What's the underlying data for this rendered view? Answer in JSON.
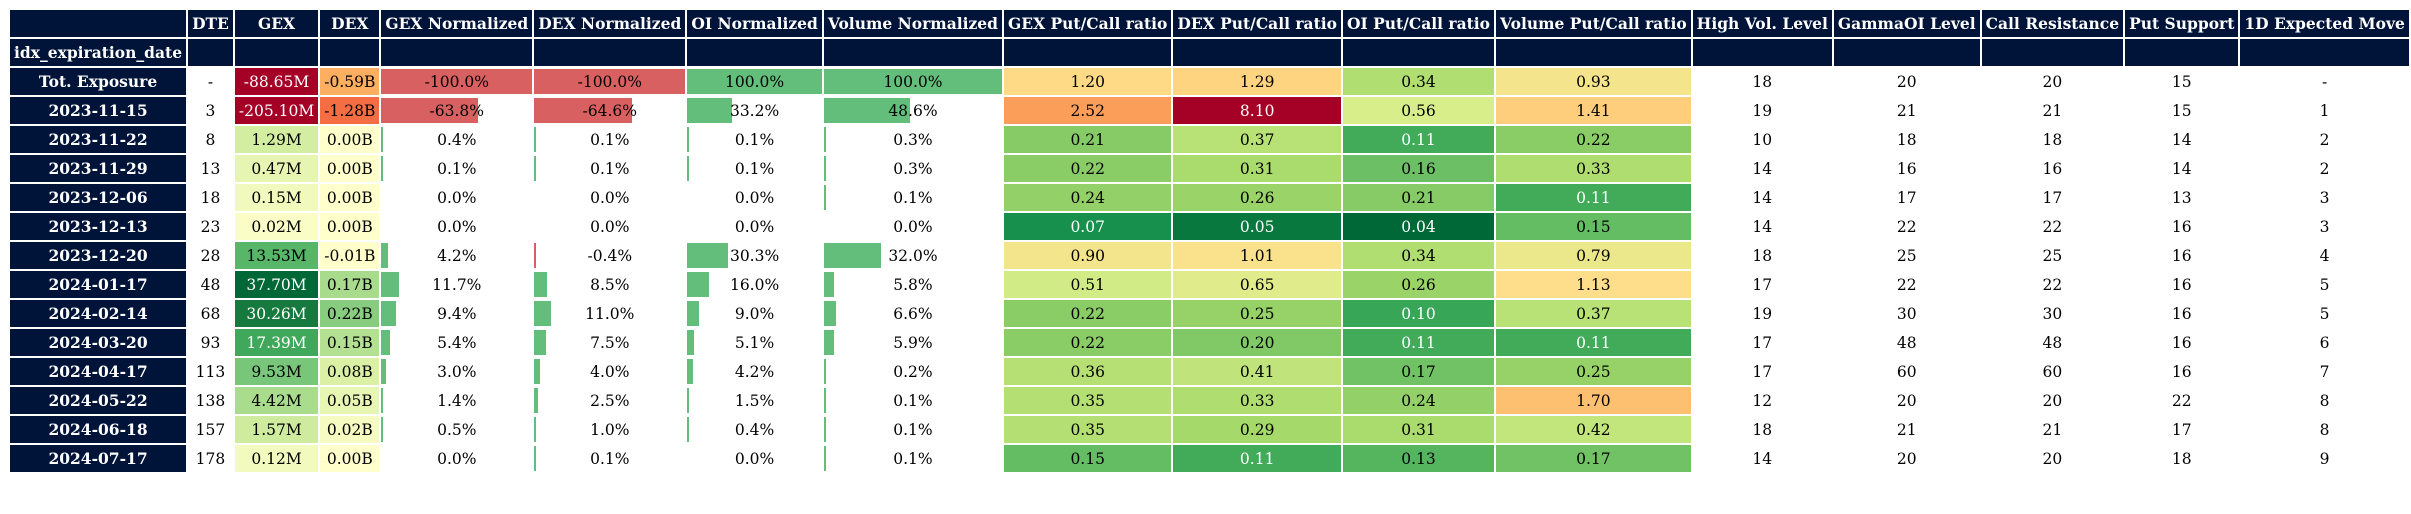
{
  "index_name": "idx_expiration_date",
  "columns": [
    {
      "key": "dte",
      "label": "DTE",
      "kind": "plain",
      "width": 48
    },
    {
      "key": "gex",
      "label": "GEX",
      "kind": "gex",
      "width": 84
    },
    {
      "key": "dex",
      "label": "DEX",
      "kind": "dex",
      "width": 62
    },
    {
      "key": "gex_norm",
      "label": "GEX Normalized",
      "kind": "bar",
      "width": 145
    },
    {
      "key": "dex_norm",
      "label": "DEX Normalized",
      "kind": "bar",
      "width": 145
    },
    {
      "key": "oi_norm",
      "label": "OI Normalized",
      "kind": "bar",
      "width": 135
    },
    {
      "key": "vol_norm",
      "label": "Volume Normalized",
      "kind": "bar",
      "width": 178
    },
    {
      "key": "gex_pc",
      "label": "GEX Put/Call ratio",
      "kind": "ratio",
      "width": 166
    },
    {
      "key": "dex_pc",
      "label": "DEX Put/Call ratio",
      "kind": "ratio",
      "width": 166
    },
    {
      "key": "oi_pc",
      "label": "OI Put/Call ratio",
      "kind": "ratio",
      "width": 151
    },
    {
      "key": "vol_pc",
      "label": "Volume Put/Call ratio",
      "kind": "ratio",
      "width": 194
    },
    {
      "key": "high_vol",
      "label": "High Vol. Level",
      "kind": "plain",
      "width": 140
    },
    {
      "key": "gamma_oi",
      "label": "GammaOI Level",
      "kind": "plain",
      "width": 146
    },
    {
      "key": "call_res",
      "label": "Call Resistance",
      "kind": "plain",
      "width": 141
    },
    {
      "key": "put_sup",
      "label": "Put Support",
      "kind": "plain",
      "width": 114
    },
    {
      "key": "exp_move",
      "label": "1D Expected Move",
      "kind": "plain",
      "width": 170
    }
  ],
  "rows": [
    {
      "label": "Tot. Exposure",
      "dte": "-",
      "gex": "-88.65M",
      "dex": "-0.59B",
      "gex_norm": "-100.0%",
      "dex_norm": "-100.0%",
      "oi_norm": "100.0%",
      "vol_norm": "100.0%",
      "gex_pc": "1.20",
      "dex_pc": "1.29",
      "oi_pc": "0.34",
      "vol_pc": "0.93",
      "high_vol": "18",
      "gamma_oi": "20",
      "call_res": "20",
      "put_sup": "15",
      "exp_move": "-"
    },
    {
      "label": "2023-11-15",
      "dte": "3",
      "gex": "-205.10M",
      "dex": "-1.28B",
      "gex_norm": "-63.8%",
      "dex_norm": "-64.6%",
      "oi_norm": "33.2%",
      "vol_norm": "48.6%",
      "gex_pc": "2.52",
      "dex_pc": "8.10",
      "oi_pc": "0.56",
      "vol_pc": "1.41",
      "high_vol": "19",
      "gamma_oi": "21",
      "call_res": "21",
      "put_sup": "15",
      "exp_move": "1"
    },
    {
      "label": "2023-11-22",
      "dte": "8",
      "gex": "1.29M",
      "dex": "0.00B",
      "gex_norm": "0.4%",
      "dex_norm": "0.1%",
      "oi_norm": "0.1%",
      "vol_norm": "0.3%",
      "gex_pc": "0.21",
      "dex_pc": "0.37",
      "oi_pc": "0.11",
      "vol_pc": "0.22",
      "high_vol": "10",
      "gamma_oi": "18",
      "call_res": "18",
      "put_sup": "14",
      "exp_move": "2"
    },
    {
      "label": "2023-11-29",
      "dte": "13",
      "gex": "0.47M",
      "dex": "0.00B",
      "gex_norm": "0.1%",
      "dex_norm": "0.1%",
      "oi_norm": "0.1%",
      "vol_norm": "0.3%",
      "gex_pc": "0.22",
      "dex_pc": "0.31",
      "oi_pc": "0.16",
      "vol_pc": "0.33",
      "high_vol": "14",
      "gamma_oi": "16",
      "call_res": "16",
      "put_sup": "14",
      "exp_move": "2"
    },
    {
      "label": "2023-12-06",
      "dte": "18",
      "gex": "0.15M",
      "dex": "0.00B",
      "gex_norm": "0.0%",
      "dex_norm": "0.0%",
      "oi_norm": "0.0%",
      "vol_norm": "0.1%",
      "gex_pc": "0.24",
      "dex_pc": "0.26",
      "oi_pc": "0.21",
      "vol_pc": "0.11",
      "high_vol": "14",
      "gamma_oi": "17",
      "call_res": "17",
      "put_sup": "13",
      "exp_move": "3"
    },
    {
      "label": "2023-12-13",
      "dte": "23",
      "gex": "0.02M",
      "dex": "0.00B",
      "gex_norm": "0.0%",
      "dex_norm": "0.0%",
      "oi_norm": "0.0%",
      "vol_norm": "0.0%",
      "gex_pc": "0.07",
      "dex_pc": "0.05",
      "oi_pc": "0.04",
      "vol_pc": "0.15",
      "high_vol": "14",
      "gamma_oi": "22",
      "call_res": "22",
      "put_sup": "16",
      "exp_move": "3"
    },
    {
      "label": "2023-12-20",
      "dte": "28",
      "gex": "13.53M",
      "dex": "-0.01B",
      "gex_norm": "4.2%",
      "dex_norm": "-0.4%",
      "oi_norm": "30.3%",
      "vol_norm": "32.0%",
      "gex_pc": "0.90",
      "dex_pc": "1.01",
      "oi_pc": "0.34",
      "vol_pc": "0.79",
      "high_vol": "18",
      "gamma_oi": "25",
      "call_res": "25",
      "put_sup": "16",
      "exp_move": "4"
    },
    {
      "label": "2024-01-17",
      "dte": "48",
      "gex": "37.70M",
      "dex": "0.17B",
      "gex_norm": "11.7%",
      "dex_norm": "8.5%",
      "oi_norm": "16.0%",
      "vol_norm": "5.8%",
      "gex_pc": "0.51",
      "dex_pc": "0.65",
      "oi_pc": "0.26",
      "vol_pc": "1.13",
      "high_vol": "17",
      "gamma_oi": "22",
      "call_res": "22",
      "put_sup": "16",
      "exp_move": "5"
    },
    {
      "label": "2024-02-14",
      "dte": "68",
      "gex": "30.26M",
      "dex": "0.22B",
      "gex_norm": "9.4%",
      "dex_norm": "11.0%",
      "oi_norm": "9.0%",
      "vol_norm": "6.6%",
      "gex_pc": "0.22",
      "dex_pc": "0.25",
      "oi_pc": "0.10",
      "vol_pc": "0.37",
      "high_vol": "19",
      "gamma_oi": "30",
      "call_res": "30",
      "put_sup": "16",
      "exp_move": "5"
    },
    {
      "label": "2024-03-20",
      "dte": "93",
      "gex": "17.39M",
      "dex": "0.15B",
      "gex_norm": "5.4%",
      "dex_norm": "7.5%",
      "oi_norm": "5.1%",
      "vol_norm": "5.9%",
      "gex_pc": "0.22",
      "dex_pc": "0.20",
      "oi_pc": "0.11",
      "vol_pc": "0.11",
      "high_vol": "17",
      "gamma_oi": "48",
      "call_res": "48",
      "put_sup": "16",
      "exp_move": "6"
    },
    {
      "label": "2024-04-17",
      "dte": "113",
      "gex": "9.53M",
      "dex": "0.08B",
      "gex_norm": "3.0%",
      "dex_norm": "4.0%",
      "oi_norm": "4.2%",
      "vol_norm": "0.2%",
      "gex_pc": "0.36",
      "dex_pc": "0.41",
      "oi_pc": "0.17",
      "vol_pc": "0.25",
      "high_vol": "17",
      "gamma_oi": "60",
      "call_res": "60",
      "put_sup": "16",
      "exp_move": "7"
    },
    {
      "label": "2024-05-22",
      "dte": "138",
      "gex": "4.42M",
      "dex": "0.05B",
      "gex_norm": "1.4%",
      "dex_norm": "2.5%",
      "oi_norm": "1.5%",
      "vol_norm": "0.1%",
      "gex_pc": "0.35",
      "dex_pc": "0.33",
      "oi_pc": "0.24",
      "vol_pc": "1.70",
      "high_vol": "12",
      "gamma_oi": "20",
      "call_res": "20",
      "put_sup": "22",
      "exp_move": "8"
    },
    {
      "label": "2024-06-18",
      "dte": "157",
      "gex": "1.57M",
      "dex": "0.02B",
      "gex_norm": "0.5%",
      "dex_norm": "1.0%",
      "oi_norm": "0.4%",
      "vol_norm": "0.1%",
      "gex_pc": "0.35",
      "dex_pc": "0.29",
      "oi_pc": "0.31",
      "vol_pc": "0.42",
      "high_vol": "18",
      "gamma_oi": "21",
      "call_res": "21",
      "put_sup": "17",
      "exp_move": "8"
    },
    {
      "label": "2024-07-17",
      "dte": "178",
      "gex": "0.12M",
      "dex": "0.00B",
      "gex_norm": "0.0%",
      "dex_norm": "0.1%",
      "oi_norm": "0.0%",
      "vol_norm": "0.1%",
      "gex_pc": "0.15",
      "dex_pc": "0.11",
      "oi_pc": "0.13",
      "vol_pc": "0.17",
      "high_vol": "14",
      "gamma_oi": "20",
      "call_res": "20",
      "put_sup": "18",
      "exp_move": "9"
    }
  ],
  "colors": {
    "header_bg": "#001338",
    "header_text": "#ffffff",
    "bar_positive": "#63be7b",
    "bar_negative": "#d96061",
    "scale_ratio": [
      "#006837",
      "#1a9850",
      "#66bd63",
      "#a6d96a",
      "#d9ef8b",
      "#fee08b",
      "#fdae61",
      "#f46d43",
      "#a50026"
    ],
    "scale_gex": [
      "#ffffcc",
      "#d9f0a3",
      "#addd8e",
      "#78c679",
      "#41ab5d",
      "#238443",
      "#006837"
    ],
    "neg_shades": [
      "#a50026",
      "#f46d43",
      "#fdae61"
    ]
  }
}
